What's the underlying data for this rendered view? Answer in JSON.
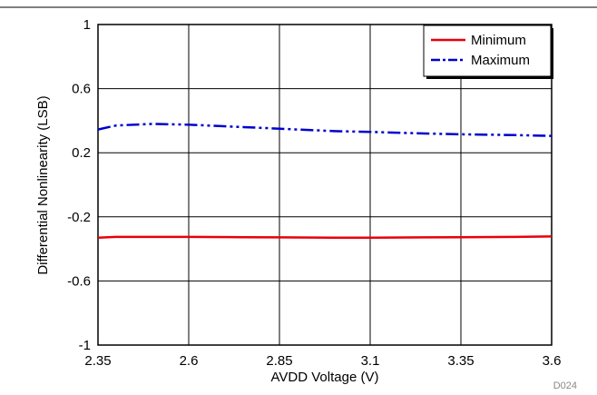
{
  "chart_data": {
    "type": "line",
    "x_label": "AVDD Voltage (V)",
    "y_label": "Differential Nonlinearity (LSB)",
    "code": "D024",
    "x": [
      2.35,
      2.4,
      2.5,
      2.6,
      2.75,
      2.85,
      3.0,
      3.1,
      3.25,
      3.35,
      3.5,
      3.6
    ],
    "series": [
      {
        "name": "Minimum",
        "color": "#e8000b",
        "dash": "solid",
        "values": [
          -0.33,
          -0.325,
          -0.325,
          -0.325,
          -0.327,
          -0.328,
          -0.33,
          -0.33,
          -0.328,
          -0.327,
          -0.325,
          -0.322
        ]
      },
      {
        "name": "Maximum",
        "color": "#0000cc",
        "dash": "dash-dot-dot",
        "values": [
          0.345,
          0.37,
          0.38,
          0.375,
          0.36,
          0.35,
          0.335,
          0.33,
          0.32,
          0.315,
          0.31,
          0.305
        ]
      }
    ],
    "xlim": [
      2.35,
      3.6
    ],
    "xticks": [
      2.35,
      2.6,
      2.85,
      3.1,
      3.35,
      3.6
    ],
    "ylim": [
      -1,
      1
    ],
    "yticks": [
      -1,
      -0.6,
      -0.2,
      0.2,
      0.6,
      1
    ],
    "grid": true,
    "legend": "top-right"
  }
}
